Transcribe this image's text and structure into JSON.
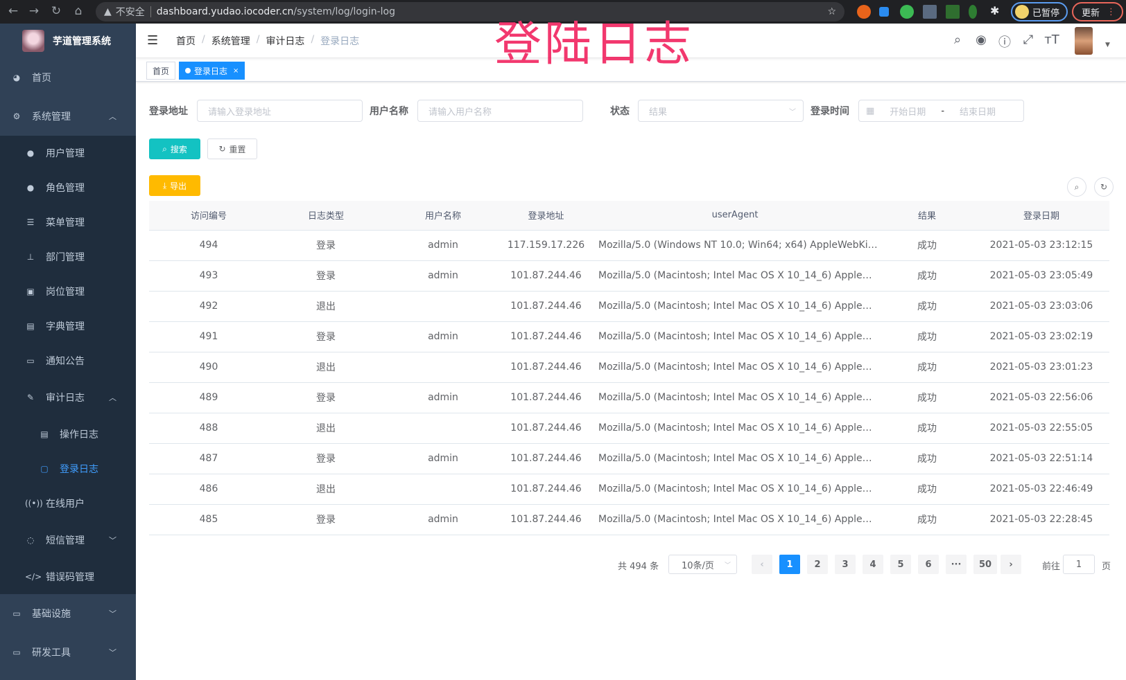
{
  "browser": {
    "insecure_label": "不安全",
    "url_host": "dashboard.yudao.iocoder.cn",
    "url_path": "/system/log/login-log",
    "profile_label": "已暂停",
    "update_label": "更新"
  },
  "overlay_title": "登陆日志",
  "sidebar": {
    "app_title": "芋道管理系统",
    "items": [
      {
        "label": "首页",
        "icon": "dashboard-icon"
      },
      {
        "label": "系统管理",
        "icon": "gear-icon",
        "expanded": true,
        "children": [
          {
            "label": "用户管理",
            "icon": "user-icon"
          },
          {
            "label": "角色管理",
            "icon": "role-icon"
          },
          {
            "label": "菜单管理",
            "icon": "menu-icon"
          },
          {
            "label": "部门管理",
            "icon": "tree-icon"
          },
          {
            "label": "岗位管理",
            "icon": "post-icon"
          },
          {
            "label": "字典管理",
            "icon": "dict-icon"
          },
          {
            "label": "通知公告",
            "icon": "message-icon"
          },
          {
            "label": "审计日志",
            "icon": "edit-icon",
            "expanded": true,
            "children": [
              {
                "label": "操作日志",
                "icon": "form-icon"
              },
              {
                "label": "登录日志",
                "icon": "logininfor-icon",
                "active": true
              }
            ]
          },
          {
            "label": "在线用户",
            "icon": "online-icon"
          },
          {
            "label": "短信管理",
            "icon": "shield-icon"
          },
          {
            "label": "错误码管理",
            "icon": "code-icon"
          }
        ]
      },
      {
        "label": "基础设施",
        "icon": "monitor-icon"
      },
      {
        "label": "研发工具",
        "icon": "tool-icon"
      }
    ]
  },
  "header": {
    "breadcrumb": [
      "首页",
      "系统管理",
      "审计日志",
      "登录日志"
    ]
  },
  "tags": [
    {
      "label": "首页"
    },
    {
      "label": "登录日志",
      "active": true
    }
  ],
  "filters": {
    "ip_label": "登录地址",
    "ip_placeholder": "请输入登录地址",
    "user_label": "用户名称",
    "user_placeholder": "请输入用户名称",
    "status_label": "状态",
    "status_placeholder": "结果",
    "time_label": "登录时间",
    "start_placeholder": "开始日期",
    "range_sep": "-",
    "end_placeholder": "结束日期"
  },
  "actions": {
    "search": "搜索",
    "reset": "重置",
    "export": "导出"
  },
  "colors": {
    "accent": "#1890ff",
    "search": "#13c2c2",
    "export": "#ffba00",
    "sidebar": "#304156",
    "overlay": "#f2386e"
  },
  "table": {
    "columns": [
      "访问编号",
      "日志类型",
      "用户名称",
      "登录地址",
      "userAgent",
      "结果",
      "登录日期"
    ],
    "rows": [
      [
        "494",
        "登录",
        "admin",
        "117.159.17.226",
        "Mozilla/5.0 (Windows NT 10.0; Win64; x64) AppleWebKit...",
        "成功",
        "2021-05-03 23:12:15"
      ],
      [
        "493",
        "登录",
        "admin",
        "101.87.244.46",
        "Mozilla/5.0 (Macintosh; Intel Mac OS X 10_14_6) AppleWe...",
        "成功",
        "2021-05-03 23:05:49"
      ],
      [
        "492",
        "退出",
        "",
        "101.87.244.46",
        "Mozilla/5.0 (Macintosh; Intel Mac OS X 10_14_6) AppleWe...",
        "成功",
        "2021-05-03 23:03:06"
      ],
      [
        "491",
        "登录",
        "admin",
        "101.87.244.46",
        "Mozilla/5.0 (Macintosh; Intel Mac OS X 10_14_6) AppleWe...",
        "成功",
        "2021-05-03 23:02:19"
      ],
      [
        "490",
        "退出",
        "",
        "101.87.244.46",
        "Mozilla/5.0 (Macintosh; Intel Mac OS X 10_14_6) AppleWe...",
        "成功",
        "2021-05-03 23:01:23"
      ],
      [
        "489",
        "登录",
        "admin",
        "101.87.244.46",
        "Mozilla/5.0 (Macintosh; Intel Mac OS X 10_14_6) AppleWe...",
        "成功",
        "2021-05-03 22:56:06"
      ],
      [
        "488",
        "退出",
        "",
        "101.87.244.46",
        "Mozilla/5.0 (Macintosh; Intel Mac OS X 10_14_6) AppleWe...",
        "成功",
        "2021-05-03 22:55:05"
      ],
      [
        "487",
        "登录",
        "admin",
        "101.87.244.46",
        "Mozilla/5.0 (Macintosh; Intel Mac OS X 10_14_6) AppleWe...",
        "成功",
        "2021-05-03 22:51:14"
      ],
      [
        "486",
        "退出",
        "",
        "101.87.244.46",
        "Mozilla/5.0 (Macintosh; Intel Mac OS X 10_14_6) AppleWe...",
        "成功",
        "2021-05-03 22:46:49"
      ],
      [
        "485",
        "登录",
        "admin",
        "101.87.244.46",
        "Mozilla/5.0 (Macintosh; Intel Mac OS X 10_14_6) AppleWe...",
        "成功",
        "2021-05-03 22:28:45"
      ]
    ]
  },
  "pagination": {
    "total_label": "共 494 条",
    "page_size": "10条/页",
    "pages": [
      "1",
      "2",
      "3",
      "4",
      "5",
      "6",
      "···",
      "50"
    ],
    "current": "1",
    "goto_label": "前往",
    "goto_value": "1",
    "page_suffix": "页"
  }
}
